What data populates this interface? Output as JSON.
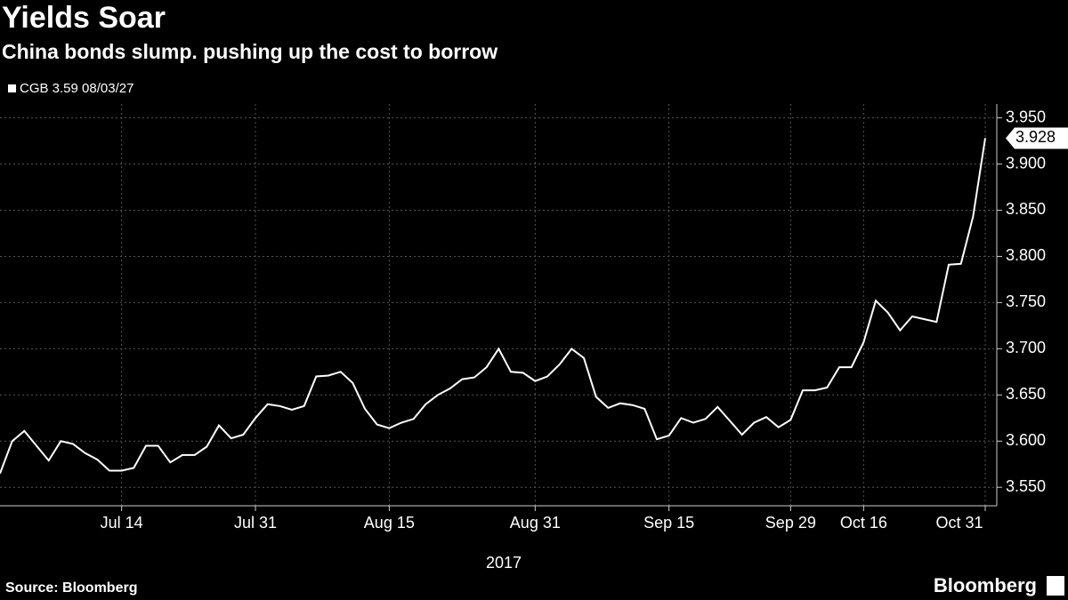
{
  "chart_data": {
    "type": "line",
    "title": "Yields Soar",
    "subtitle": "China bonds slump. pushing up the cost to borrow",
    "xlabel": "2017",
    "source": "Source: Bloomberg",
    "brand": "Bloomberg",
    "categories": [
      null,
      null,
      null,
      null,
      null,
      null,
      null,
      null,
      null,
      null,
      "Jul 14",
      null,
      null,
      null,
      null,
      null,
      null,
      null,
      null,
      null,
      null,
      "Jul 31",
      null,
      null,
      null,
      null,
      null,
      null,
      null,
      null,
      null,
      null,
      "Aug 15",
      null,
      null,
      null,
      null,
      null,
      null,
      null,
      null,
      null,
      null,
      null,
      "Aug 31",
      null,
      null,
      null,
      null,
      null,
      null,
      null,
      null,
      null,
      null,
      "Sep 15",
      null,
      null,
      null,
      null,
      null,
      null,
      null,
      null,
      null,
      "Sep 29",
      null,
      null,
      null,
      null,
      null,
      "Oct 16",
      null,
      null,
      null,
      null,
      null,
      null,
      null,
      null,
      null,
      "Oct 31"
    ],
    "series": [
      {
        "name": "CGB 3.59 08/03/27",
        "color": "#ffffff",
        "values": [
          3.565,
          3.6,
          3.611,
          3.595,
          3.579,
          3.6,
          3.597,
          3.587,
          3.58,
          3.568,
          3.568,
          3.571,
          3.595,
          3.595,
          3.577,
          3.585,
          3.585,
          3.594,
          3.617,
          3.603,
          3.607,
          3.625,
          3.64,
          3.638,
          3.634,
          3.638,
          3.67,
          3.671,
          3.675,
          3.663,
          3.635,
          3.618,
          3.614,
          3.62,
          3.624,
          3.64,
          3.65,
          3.657,
          3.667,
          3.669,
          3.68,
          3.7,
          3.675,
          3.674,
          3.665,
          3.67,
          3.683,
          3.7,
          3.69,
          3.648,
          3.636,
          3.641,
          3.639,
          3.635,
          3.602,
          3.606,
          3.625,
          3.62,
          3.624,
          3.637,
          3.622,
          3.607,
          3.62,
          3.626,
          3.615,
          3.623,
          3.655,
          3.655,
          3.658,
          3.68,
          3.68,
          3.707,
          3.752,
          3.739,
          3.72,
          3.735,
          3.732,
          3.729,
          3.791,
          3.792,
          3.843,
          3.928
        ]
      }
    ],
    "ylim": [
      3.53,
      3.965
    ],
    "yticks": [
      {
        "value": 3.55,
        "label": "3.550"
      },
      {
        "value": 3.6,
        "label": "3.600"
      },
      {
        "value": 3.65,
        "label": "3.650"
      },
      {
        "value": 3.7,
        "label": "3.700"
      },
      {
        "value": 3.75,
        "label": "3.750"
      },
      {
        "value": 3.8,
        "label": "3.800"
      },
      {
        "value": 3.85,
        "label": "3.850"
      },
      {
        "value": 3.9,
        "label": "3.900"
      },
      {
        "value": 3.95,
        "label": "3.950"
      }
    ],
    "grid": true,
    "legend": "top-left"
  }
}
